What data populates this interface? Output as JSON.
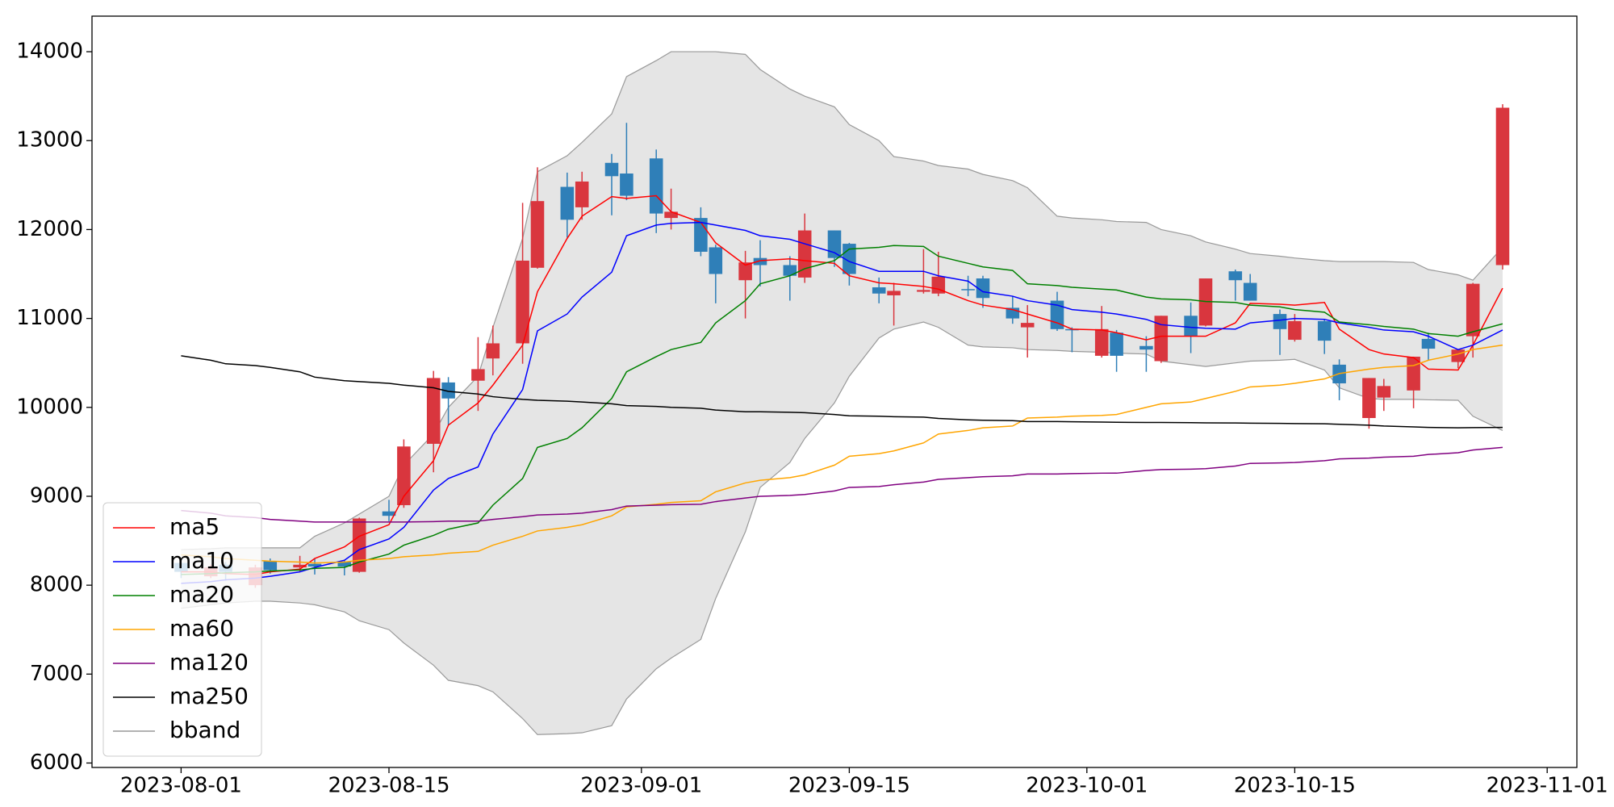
{
  "chart_data": {
    "type": "candlestick",
    "x": [
      "2023-08-01",
      "2023-08-03",
      "2023-08-04",
      "2023-08-06",
      "2023-08-07",
      "2023-08-09",
      "2023-08-10",
      "2023-08-12",
      "2023-08-13",
      "2023-08-15",
      "2023-08-16",
      "2023-08-18",
      "2023-08-19",
      "2023-08-21",
      "2023-08-22",
      "2023-08-24",
      "2023-08-25",
      "2023-08-27",
      "2023-08-28",
      "2023-08-30",
      "2023-08-31",
      "2023-09-02",
      "2023-09-03",
      "2023-09-05",
      "2023-09-06",
      "2023-09-08",
      "2023-09-09",
      "2023-09-11",
      "2023-09-12",
      "2023-09-14",
      "2023-09-15",
      "2023-09-17",
      "2023-09-18",
      "2023-09-20",
      "2023-09-21",
      "2023-09-23",
      "2023-09-24",
      "2023-09-26",
      "2023-09-27",
      "2023-09-29",
      "2023-09-30",
      "2023-10-02",
      "2023-10-03",
      "2023-10-05",
      "2023-10-06",
      "2023-10-08",
      "2023-10-09",
      "2023-10-11",
      "2023-10-12",
      "2023-10-14",
      "2023-10-15",
      "2023-10-17",
      "2023-10-18",
      "2023-10-20",
      "2023-10-21",
      "2023-10-23",
      "2023-10-24",
      "2023-10-26",
      "2023-10-27",
      "2023-10-29"
    ],
    "open": [
      8250,
      8100,
      8230,
      8000,
      8270,
      8200,
      8240,
      8260,
      8150,
      8830,
      8900,
      9590,
      10280,
      10300,
      10550,
      10720,
      11570,
      12480,
      12250,
      12750,
      12630,
      12800,
      12130,
      12130,
      11800,
      11430,
      11680,
      11600,
      11460,
      11990,
      11840,
      11350,
      11260,
      11300,
      11280,
      11330,
      11450,
      11120,
      10900,
      11200,
      10880,
      10580,
      10840,
      10690,
      10520,
      11030,
      10920,
      11530,
      11400,
      11050,
      10760,
      10970,
      10480,
      9880,
      10110,
      10190,
      10770,
      10510,
      10800,
      11600
    ],
    "high": [
      8300,
      8230,
      8260,
      8230,
      8300,
      8330,
      8300,
      8280,
      8760,
      8960,
      9640,
      10410,
      10340,
      10790,
      10920,
      12300,
      12700,
      12640,
      12650,
      12850,
      13200,
      12900,
      12460,
      12250,
      11830,
      11760,
      11880,
      11700,
      12180,
      11990,
      11850,
      11460,
      11400,
      11780,
      11750,
      11480,
      11480,
      11250,
      11150,
      11300,
      10900,
      11140,
      10870,
      10800,
      11030,
      11180,
      11450,
      11550,
      11500,
      11100,
      11050,
      10990,
      10540,
      10330,
      10320,
      10570,
      10840,
      10650,
      11400,
      13410
    ],
    "low": [
      8080,
      8080,
      8050,
      7970,
      8130,
      8150,
      8120,
      8110,
      8140,
      8720,
      8870,
      9270,
      9800,
      9960,
      10360,
      10490,
      11560,
      11910,
      12110,
      12160,
      12330,
      11960,
      12000,
      11700,
      11170,
      11000,
      11360,
      11200,
      11400,
      11580,
      11370,
      11170,
      10920,
      11280,
      11250,
      11250,
      11120,
      10940,
      10560,
      10860,
      10620,
      10560,
      10400,
      10400,
      10500,
      10610,
      10910,
      11200,
      11200,
      10590,
      10740,
      10600,
      10080,
      9760,
      9960,
      9990,
      10530,
      10440,
      10560,
      11550
    ],
    "close": [
      8150,
      8200,
      8150,
      8200,
      8170,
      8230,
      8210,
      8210,
      8750,
      8780,
      9560,
      10330,
      10100,
      10430,
      10720,
      11650,
      12320,
      12110,
      12540,
      12600,
      12380,
      12180,
      12200,
      11750,
      11500,
      11630,
      11600,
      11480,
      11990,
      11680,
      11500,
      11280,
      11310,
      11320,
      11470,
      11320,
      11230,
      11000,
      10950,
      10880,
      10870,
      10880,
      10580,
      10650,
      11030,
      10800,
      11450,
      11430,
      11200,
      10880,
      10970,
      10750,
      10270,
      10330,
      10240,
      10570,
      10660,
      10650,
      11390,
      13370
    ],
    "up_color": "#d9363e",
    "down_color": "#2f7fb8",
    "series": [
      {
        "name": "ma5",
        "color": "#ff0000",
        "values": [
          8150,
          8150,
          8130,
          8120,
          8150,
          8180,
          8300,
          8430,
          8550,
          8680,
          9000,
          9400,
          9800,
          10050,
          10250,
          10700,
          11300,
          11900,
          12150,
          12370,
          12350,
          12380,
          12200,
          12080,
          11850,
          11600,
          11650,
          11670,
          11650,
          11620,
          11480,
          11400,
          11390,
          11360,
          11330,
          11200,
          11150,
          11100,
          11050,
          10950,
          10880,
          10870,
          10840,
          10760,
          10800,
          10800,
          10800,
          10950,
          11170,
          11160,
          11150,
          11180,
          10880,
          10650,
          10600,
          10560,
          10430,
          10420,
          10700,
          11340
        ]
      },
      {
        "name": "ma10",
        "color": "#0000ff",
        "values": [
          8020,
          8040,
          8060,
          8080,
          8100,
          8150,
          8200,
          8280,
          8400,
          8520,
          8650,
          9070,
          9200,
          9330,
          9700,
          10200,
          10860,
          11050,
          11240,
          11520,
          11930,
          12050,
          12070,
          12080,
          12050,
          11990,
          11930,
          11890,
          11840,
          11740,
          11640,
          11530,
          11530,
          11530,
          11480,
          11420,
          11300,
          11250,
          11200,
          11150,
          11100,
          11070,
          11050,
          10990,
          10930,
          10900,
          10890,
          10880,
          10950,
          10980,
          11000,
          10990,
          10950,
          10900,
          10870,
          10850,
          10800,
          10650,
          10700,
          10870
        ]
      },
      {
        "name": "ma20",
        "color": "#008000",
        "values": [
          8120,
          8130,
          8140,
          8150,
          8160,
          8170,
          8190,
          8200,
          8260,
          8350,
          8450,
          8560,
          8630,
          8700,
          8900,
          9200,
          9550,
          9650,
          9770,
          10100,
          10400,
          10570,
          10650,
          10730,
          10950,
          11200,
          11390,
          11480,
          11560,
          11650,
          11780,
          11800,
          11820,
          11810,
          11700,
          11620,
          11580,
          11540,
          11390,
          11370,
          11350,
          11330,
          11320,
          11240,
          11220,
          11210,
          11190,
          11180,
          11150,
          11130,
          11100,
          11070,
          10960,
          10930,
          10910,
          10880,
          10830,
          10800,
          10850,
          10940
        ]
      },
      {
        "name": "ma60",
        "color": "#ffa500",
        "values": [
          8340,
          8320,
          8300,
          8280,
          8270,
          8260,
          8250,
          8260,
          8280,
          8300,
          8320,
          8340,
          8360,
          8380,
          8450,
          8550,
          8610,
          8650,
          8680,
          8780,
          8880,
          8910,
          8930,
          8950,
          9050,
          9150,
          9180,
          9210,
          9240,
          9350,
          9450,
          9480,
          9510,
          9600,
          9700,
          9740,
          9770,
          9790,
          9880,
          9890,
          9900,
          9910,
          9920,
          10000,
          10040,
          10060,
          10100,
          10180,
          10230,
          10250,
          10270,
          10320,
          10380,
          10430,
          10450,
          10470,
          10530,
          10600,
          10650,
          10700
        ]
      },
      {
        "name": "ma120",
        "color": "#800080",
        "values": [
          8840,
          8810,
          8780,
          8760,
          8740,
          8720,
          8710,
          8710,
          8710,
          8710,
          8710,
          8715,
          8720,
          8720,
          8740,
          8770,
          8790,
          8800,
          8810,
          8850,
          8890,
          8900,
          8905,
          8910,
          8940,
          8980,
          9000,
          9010,
          9020,
          9060,
          9100,
          9110,
          9130,
          9160,
          9190,
          9210,
          9220,
          9230,
          9250,
          9250,
          9255,
          9260,
          9260,
          9290,
          9300,
          9305,
          9310,
          9340,
          9370,
          9375,
          9380,
          9400,
          9420,
          9430,
          9440,
          9450,
          9470,
          9490,
          9520,
          9550
        ]
      },
      {
        "name": "ma250",
        "color": "#000000",
        "values": [
          10580,
          10530,
          10490,
          10470,
          10450,
          10400,
          10340,
          10300,
          10290,
          10270,
          10250,
          10220,
          10180,
          10150,
          10120,
          10090,
          10080,
          10070,
          10060,
          10040,
          10020,
          10010,
          10000,
          9990,
          9970,
          9950,
          9950,
          9945,
          9940,
          9920,
          9905,
          9900,
          9895,
          9890,
          9875,
          9860,
          9855,
          9850,
          9840,
          9840,
          9838,
          9835,
          9832,
          9830,
          9830,
          9828,
          9826,
          9824,
          9822,
          9820,
          9818,
          9815,
          9810,
          9800,
          9790,
          9780,
          9775,
          9770,
          9772,
          9775
        ]
      },
      {
        "name": "bband",
        "color": "#999999",
        "fill": "#e5e5e5",
        "upper": [
          8400,
          8410,
          8420,
          8420,
          8420,
          8420,
          8550,
          8700,
          8800,
          9000,
          9350,
          9700,
          10000,
          10350,
          10900,
          11900,
          12650,
          12830,
          12980,
          13300,
          13720,
          13900,
          14000,
          14000,
          14000,
          13970,
          13800,
          13580,
          13500,
          13380,
          13180,
          13000,
          12820,
          12770,
          12720,
          12680,
          12620,
          12550,
          12470,
          12150,
          12130,
          12110,
          12090,
          12080,
          12000,
          11930,
          11860,
          11780,
          11730,
          11700,
          11680,
          11650,
          11640,
          11640,
          11640,
          11630,
          11550,
          11490,
          11430,
          11800
        ],
        "lower": [
          7740,
          7780,
          7800,
          7820,
          7820,
          7800,
          7780,
          7700,
          7600,
          7500,
          7350,
          7100,
          6930,
          6870,
          6800,
          6500,
          6320,
          6330,
          6340,
          6420,
          6720,
          7060,
          7180,
          7390,
          7850,
          8600,
          9100,
          9380,
          9650,
          10050,
          10350,
          10780,
          10880,
          10960,
          10900,
          10700,
          10680,
          10670,
          10650,
          10640,
          10630,
          10620,
          10610,
          10600,
          10520,
          10480,
          10460,
          10500,
          10520,
          10530,
          10540,
          10420,
          10220,
          10100,
          10090,
          10090,
          10085,
          10080,
          9900,
          9740
        ]
      }
    ],
    "xlim": [
      "2023-07-26",
      "2023-11-03"
    ],
    "xticks": [
      "2023-08-01",
      "2023-08-15",
      "2023-09-01",
      "2023-09-15",
      "2023-10-01",
      "2023-10-15",
      "2023-11-01"
    ],
    "ylim": [
      5950,
      14400
    ],
    "yticks": [
      6000,
      7000,
      8000,
      9000,
      10000,
      11000,
      12000,
      13000,
      14000
    ],
    "legend": "lower left"
  }
}
